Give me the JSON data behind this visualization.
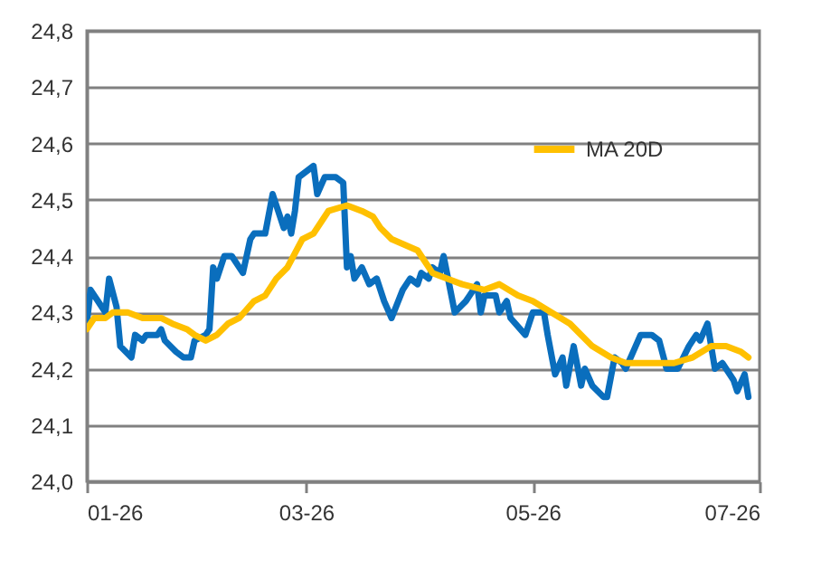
{
  "chart_data": {
    "type": "line",
    "x": [
      "--01-26",
      "--01-27",
      "--01-29",
      "--01-31",
      "--02-01",
      "--02-03",
      "--02-04",
      "--02-07",
      "--02-08",
      "--02-10",
      "--02-11",
      "--02-14",
      "--02-15",
      "--02-16",
      "--02-19",
      "--02-21",
      "--02-23",
      "--02-24",
      "--02-27",
      "--02-28",
      "--03-01",
      "--03-02",
      "--03-04",
      "--03-06",
      "--03-09",
      "--03-11",
      "--03-12",
      "--03-15",
      "--03-17",
      "--03-18",
      "--03-20",
      "--03-21",
      "--03-22",
      "--03-23",
      "--03-24",
      "--03-26",
      "--03-28",
      "--03-29",
      "--03-31",
      "--04-03",
      "--04-05",
      "--04-06",
      "--04-07",
      "--04-08",
      "--04-10",
      "--04-12",
      "--04-14",
      "--04-16",
      "--04-18",
      "--04-21",
      "--04-23",
      "--04-25",
      "--04-26",
      "--04-28",
      "--04-29",
      "--05-01",
      "--05-02",
      "--05-05",
      "--05-08",
      "--05-09",
      "--05-11",
      "--05-12",
      "--05-13",
      "--05-16",
      "--05-17",
      "--05-19",
      "--05-20",
      "--05-24",
      "--05-26",
      "--05-29",
      "--05-30",
      "--06-01",
      "--06-03",
      "--06-04",
      "--06-06",
      "--06-08",
      "--06-09",
      "--06-11",
      "--06-14",
      "--06-15",
      "--06-17",
      "--06-19",
      "--06-20",
      "--06-22",
      "--06-24",
      "--06-27",
      "--06-29",
      "--07-01",
      "--07-04",
      "--07-07",
      "--07-09",
      "--07-10",
      "--07-12",
      "--07-14",
      "--07-16",
      "--07-17",
      "--07-19",
      "--07-20",
      "--07-22",
      "--07-23"
    ],
    "series": [
      {
        "color": "#0a6ebd",
        "values": [
          24.28,
          24.34,
          24.32,
          24.3,
          24.36,
          24.31,
          24.24,
          24.22,
          24.26,
          24.25,
          24.26,
          24.26,
          24.27,
          24.25,
          24.23,
          24.22,
          24.22,
          24.25,
          24.26,
          24.27,
          24.38,
          24.36,
          24.4,
          24.4,
          24.37,
          24.43,
          24.44,
          24.44,
          24.51,
          24.49,
          24.45,
          24.47,
          24.44,
          24.48,
          24.54,
          24.55,
          24.56,
          24.51,
          24.54,
          24.54,
          24.53,
          24.38,
          24.4,
          24.36,
          24.38,
          24.35,
          24.36,
          24.32,
          24.29,
          24.34,
          24.36,
          24.35,
          24.37,
          24.36,
          24.38,
          24.37,
          24.4,
          24.3,
          24.32,
          24.33,
          24.35,
          24.3,
          24.33,
          24.33,
          24.3,
          24.32,
          24.29,
          24.26,
          24.3,
          24.3,
          24.26,
          24.19,
          24.22,
          24.17,
          24.24,
          24.17,
          24.2,
          24.17,
          24.15,
          24.15,
          24.22,
          24.21,
          24.2,
          24.23,
          24.26,
          24.26,
          24.25,
          24.2,
          24.2,
          24.24,
          24.26,
          24.25,
          24.28,
          24.2,
          24.21,
          24.2,
          24.18,
          24.16,
          24.19,
          24.15
        ]
      },
      {
        "name": "MA 20D",
        "color": "#ffc000",
        "x": [
          "--01-26",
          "--01-28",
          "--01-31",
          "--02-02",
          "--02-06",
          "--02-10",
          "--02-15",
          "--02-18",
          "--02-22",
          "--02-24",
          "--02-27",
          "--03-02",
          "--03-05",
          "--03-08",
          "--03-12",
          "--03-15",
          "--03-18",
          "--03-21",
          "--03-25",
          "--03-28",
          "--04-01",
          "--04-06",
          "--04-10",
          "--04-13",
          "--04-15",
          "--04-18",
          "--04-25",
          "--04-29",
          "--05-03",
          "--05-07",
          "--05-13",
          "--05-17",
          "--05-22",
          "--05-26",
          "--05-31",
          "--06-05",
          "--06-11",
          "--06-16",
          "--06-20",
          "--06-27",
          "--07-03",
          "--07-08",
          "--07-13",
          "--07-17",
          "--07-21",
          "--07-23"
        ],
        "values": [
          24.27,
          24.29,
          24.29,
          24.3,
          24.3,
          24.29,
          24.29,
          24.28,
          24.27,
          24.26,
          24.25,
          24.26,
          24.28,
          24.29,
          24.32,
          24.33,
          24.36,
          24.38,
          24.43,
          24.44,
          24.48,
          24.49,
          24.48,
          24.47,
          24.45,
          24.43,
          24.41,
          24.37,
          24.36,
          24.35,
          24.34,
          24.35,
          24.33,
          24.32,
          24.3,
          24.28,
          24.24,
          24.22,
          24.21,
          24.21,
          24.21,
          24.22,
          24.24,
          24.24,
          24.23,
          24.22
        ]
      }
    ],
    "xlim": [
      "--01-26",
      "--07-26"
    ],
    "xticks": [
      {
        "value": "--01-26",
        "label": "01-26"
      },
      {
        "value": "--03-26",
        "label": "03-26"
      },
      {
        "value": "--05-26",
        "label": "05-26"
      },
      {
        "value": "--07-26",
        "label": "07-26"
      }
    ],
    "ylim": [
      24.0,
      24.8
    ],
    "yticks": [
      {
        "value": 24.0,
        "label": "24,0"
      },
      {
        "value": 24.1,
        "label": "24,1"
      },
      {
        "value": 24.2,
        "label": "24,2"
      },
      {
        "value": 24.3,
        "label": "24,3"
      },
      {
        "value": 24.4,
        "label": "24,4"
      },
      {
        "value": 24.5,
        "label": "24,5"
      },
      {
        "value": 24.6,
        "label": "24,6"
      },
      {
        "value": 24.7,
        "label": "24,7"
      },
      {
        "value": 24.8,
        "label": "24,8"
      }
    ],
    "grid": "y",
    "legend": "top right",
    "line_style": "solid"
  }
}
